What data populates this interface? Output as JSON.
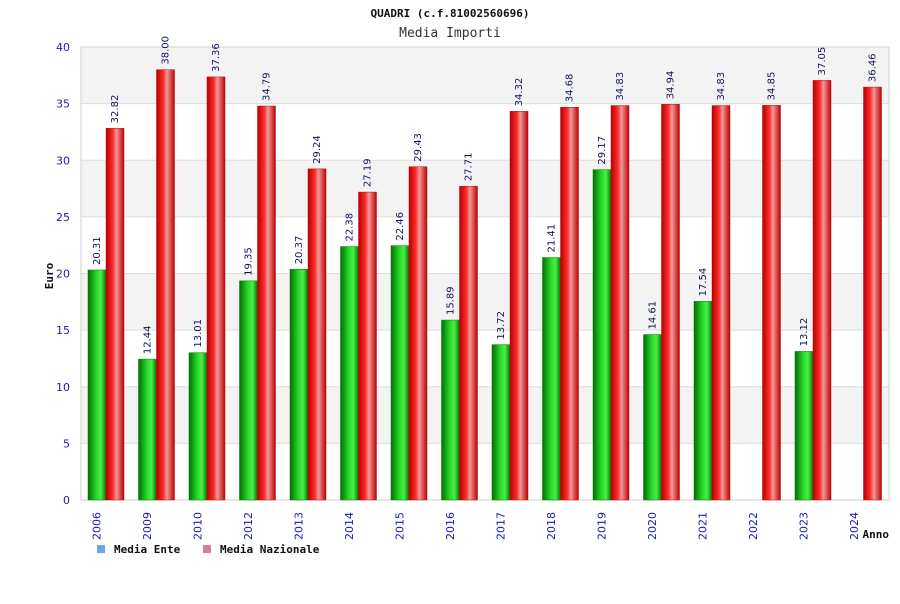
{
  "chart_data": {
    "type": "bar",
    "title": "QUADRI (c.f.81002560696)",
    "subtitle": "Media Importi",
    "xlabel": "Anno",
    "ylabel": "Euro",
    "ylim": [
      0,
      40
    ],
    "yticks": [
      0,
      5,
      10,
      15,
      20,
      25,
      30,
      35,
      40
    ],
    "categories": [
      "2006",
      "2009",
      "2010",
      "2012",
      "2013",
      "2014",
      "2015",
      "2016",
      "2017",
      "2018",
      "2019",
      "2020",
      "2021",
      "2022",
      "2023",
      "2024"
    ],
    "series": [
      {
        "name": "Media Ente",
        "legend_label": "Media Ente",
        "color": "#16a016",
        "legend_color": "#6aa5e8",
        "values": [
          20.31,
          12.44,
          13.01,
          19.35,
          20.37,
          22.38,
          22.46,
          15.89,
          13.72,
          21.41,
          29.17,
          14.61,
          17.54,
          null,
          13.12,
          null
        ],
        "labels": [
          "20.31",
          "12.44",
          "13.01",
          "19.35",
          "20.37",
          "22.38",
          "22.46",
          "15.89",
          "13.72",
          "21.41",
          "29.17",
          "14.61",
          "17.54",
          "",
          "13.12",
          ""
        ]
      },
      {
        "name": "Media Nazionale",
        "legend_label": "Media Nazionale",
        "color": "#e01010",
        "legend_color": "#d87aa4",
        "values": [
          32.82,
          38.0,
          37.36,
          34.79,
          29.24,
          27.19,
          29.43,
          27.71,
          34.32,
          34.68,
          34.83,
          34.94,
          34.83,
          34.85,
          37.05,
          36.46
        ],
        "labels": [
          "32.82",
          "38.00",
          "37.36",
          "34.79",
          "29.24",
          "27.19",
          "29.43",
          "27.71",
          "34.32",
          "34.68",
          "34.83",
          "34.94",
          "34.83",
          "34.85",
          "37.05",
          "36.46"
        ]
      }
    ],
    "grid": true,
    "legend_position": "bottom-left"
  }
}
